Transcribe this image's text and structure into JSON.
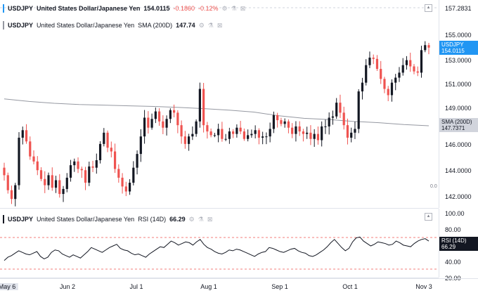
{
  "main_legend": {
    "symbol": "USDJPY",
    "name": "United States Dollar/Japanese Yen",
    "price": "154.0115",
    "change": "-0.1860",
    "change_pct": "-0.12%"
  },
  "sma_legend": {
    "symbol": "USDJPY",
    "name": "United States Dollar/Japanese Yen",
    "indicator": "SMA (200D)",
    "value": "147.74"
  },
  "rsi_legend": {
    "symbol": "USDJPY",
    "name": "United States Dollar/Japanese Yen",
    "indicator": "RSI (14D)",
    "value": "66.29"
  },
  "price_axis": {
    "ticks": [
      "157.2831",
      "155.0000",
      "153.0000",
      "151.0000",
      "149.0000",
      "146.0000",
      "144.0000",
      "142.0000"
    ],
    "current_tag": {
      "label": "USDJPY",
      "value": "154.0115",
      "color": "#2196f3"
    },
    "sma_tag": {
      "label": "SMA (200D)",
      "value": "147.7371",
      "color": "#d1d4dc"
    },
    "scale_label": "0.0"
  },
  "rsi_axis": {
    "ticks": [
      "100.00",
      "80.00",
      "40.00",
      "20.00"
    ],
    "tag": {
      "label": "RSI (14D)",
      "value": "66.29",
      "color": "#131722"
    }
  },
  "time_axis": {
    "ticks": [
      "May 6",
      "Jun 2",
      "Jul 1",
      "Aug 1",
      "Sep 1",
      "Oct 1",
      "Nov 3"
    ]
  },
  "colors": {
    "up": "#131722",
    "down": "#ef5350",
    "sma": "#9598a1",
    "rsi": "#131722",
    "band": "#ef5350",
    "accent": "#2196f3"
  },
  "chart_data": [
    {
      "type": "candlestick",
      "title": "USDJPY",
      "ylim": [
        141.5,
        157.3
      ],
      "last_price": 154.0115,
      "sma_200d_last": 147.7371,
      "close": [
        143.8,
        142.6,
        141.9,
        143.0,
        146.8,
        147.4,
        146.5,
        145.3,
        144.9,
        144.2,
        143.5,
        143.0,
        143.8,
        142.8,
        143.4,
        142.3,
        142.7,
        143.6,
        144.6,
        144.9,
        144.3,
        144.2,
        143.2,
        144.5,
        144.4,
        145.0,
        146.3,
        147.2,
        146.0,
        145.7,
        144.3,
        143.6,
        142.9,
        142.5,
        143.2,
        144.4,
        145.5,
        146.9,
        148.4,
        147.6,
        148.3,
        148.9,
        148.1,
        147.6,
        148.3,
        149.0,
        148.8,
        147.8,
        146.9,
        146.3,
        146.9,
        147.1,
        148.1,
        150.7,
        147.8,
        147.3,
        147.0,
        147.0,
        147.5,
        146.7,
        146.7,
        147.3,
        147.1,
        147.6,
        147.3,
        146.7,
        147.0,
        147.1,
        147.4,
        146.8,
        146.9,
        146.9,
        147.5,
        148.6,
        148.2,
        147.9,
        148.1,
        147.6,
        147.1,
        147.7,
        147.3,
        147.1,
        147.2,
        146.7,
        147.1,
        146.6,
        147.7,
        147.7,
        148.4,
        148.5,
        149.6,
        148.8,
        147.8,
        146.8,
        147.2,
        147.5,
        150.5,
        151.2,
        152.6,
        153.2,
        153.1,
        152.3,
        151.5,
        150.7,
        150.2,
        151.2,
        151.6,
        152.0,
        152.6,
        153.0,
        152.5,
        152.1,
        152.0,
        153.8,
        154.2,
        154.0
      ],
      "sma_200d": [
        149.9,
        149.7,
        149.55,
        149.45,
        149.4,
        149.35,
        149.3,
        149.22,
        149.12,
        149.0,
        148.85,
        148.55,
        148.35,
        148.25,
        148.1,
        148.0,
        147.85,
        147.75
      ]
    },
    {
      "type": "line",
      "title": "RSI (14D)",
      "ylim": [
        20,
        100
      ],
      "bands": [
        70,
        30
      ],
      "last": 66.29,
      "values": [
        42,
        46,
        48,
        51,
        54,
        52,
        50,
        49,
        51,
        53,
        47,
        44,
        46,
        52,
        55,
        54,
        50,
        48,
        46,
        49,
        47,
        45,
        49,
        53,
        58,
        56,
        54,
        52,
        55,
        58,
        60,
        62,
        57,
        55,
        54,
        51,
        49,
        50,
        48,
        46,
        50,
        53,
        56,
        59,
        58,
        62,
        66,
        64,
        61,
        63,
        65,
        64,
        61,
        65,
        68,
        62,
        58,
        56,
        53,
        51,
        50,
        52,
        55,
        54,
        56,
        55,
        53,
        51,
        49,
        47,
        50,
        52,
        53,
        58,
        57,
        55,
        53,
        52,
        54,
        56,
        57,
        54,
        52,
        51,
        48,
        47,
        49,
        52,
        55,
        59,
        64,
        68,
        63,
        58,
        54,
        57,
        65,
        70,
        71,
        66,
        63,
        60,
        62,
        65,
        64,
        63,
        61,
        62,
        66,
        64,
        61,
        60,
        59,
        63,
        66,
        68,
        69,
        66
      ]
    }
  ]
}
